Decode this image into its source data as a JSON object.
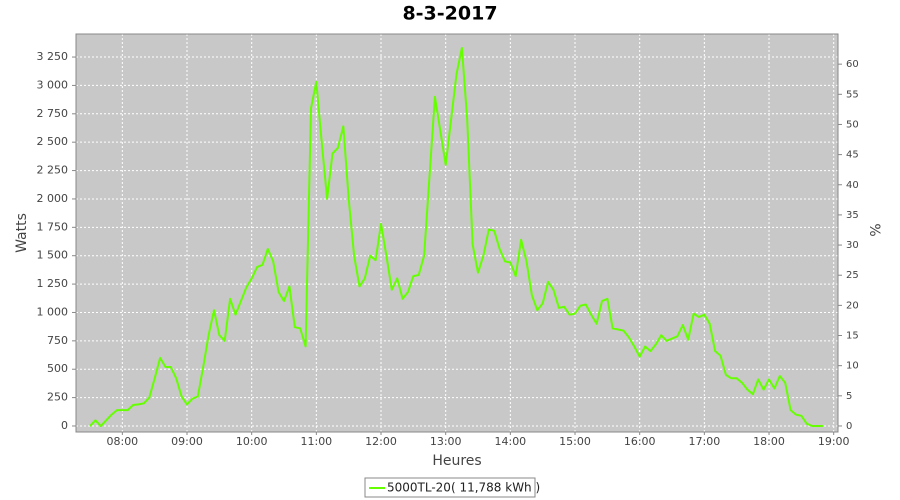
{
  "chart_data": {
    "type": "line",
    "title": "8-3-2017",
    "x_label": "Heures",
    "y_label": "Watts",
    "y2_label": "%",
    "x": [
      "07:30",
      "07:35",
      "07:40",
      "07:45",
      "07:50",
      "07:55",
      "08:00",
      "08:05",
      "08:10",
      "08:15",
      "08:20",
      "08:25",
      "08:30",
      "08:35",
      "08:40",
      "08:45",
      "08:50",
      "08:55",
      "09:00",
      "09:05",
      "09:10",
      "09:15",
      "09:20",
      "09:25",
      "09:30",
      "09:35",
      "09:40",
      "09:45",
      "09:50",
      "09:55",
      "10:00",
      "10:05",
      "10:10",
      "10:15",
      "10:20",
      "10:25",
      "10:30",
      "10:35",
      "10:40",
      "10:45",
      "10:50",
      "10:55",
      "11:00",
      "11:05",
      "11:10",
      "11:15",
      "11:20",
      "11:25",
      "11:30",
      "11:35",
      "11:40",
      "11:45",
      "11:50",
      "11:55",
      "12:00",
      "12:05",
      "12:10",
      "12:15",
      "12:20",
      "12:25",
      "12:30",
      "12:35",
      "12:40",
      "12:45",
      "12:50",
      "12:55",
      "13:00",
      "13:05",
      "13:10",
      "13:15",
      "13:20",
      "13:25",
      "13:30",
      "13:35",
      "13:40",
      "13:45",
      "13:50",
      "13:55",
      "14:00",
      "14:05",
      "14:10",
      "14:15",
      "14:20",
      "14:25",
      "14:30",
      "14:35",
      "14:40",
      "14:45",
      "14:50",
      "14:55",
      "15:00",
      "15:05",
      "15:10",
      "15:15",
      "15:20",
      "15:25",
      "15:30",
      "15:35",
      "15:40",
      "15:45",
      "15:50",
      "15:55",
      "16:00",
      "16:05",
      "16:10",
      "16:15",
      "16:20",
      "16:25",
      "16:30",
      "16:35",
      "16:40",
      "16:45",
      "16:50",
      "16:55",
      "17:00",
      "17:05",
      "17:10",
      "17:15",
      "17:20",
      "17:25",
      "17:30",
      "17:35",
      "17:40",
      "17:45",
      "17:50",
      "17:55",
      "18:00",
      "18:05",
      "18:10",
      "18:15",
      "18:20",
      "18:25",
      "18:30",
      "18:35",
      "18:40",
      "18:45",
      "18:50"
    ],
    "series": [
      {
        "name": "5000TL-20( 11,788 kWh )",
        "color": "#66ff00",
        "values": [
          0,
          50,
          0,
          50,
          100,
          140,
          140,
          140,
          185,
          190,
          200,
          250,
          420,
          600,
          520,
          520,
          420,
          260,
          190,
          240,
          260,
          520,
          800,
          1020,
          800,
          750,
          1120,
          980,
          1100,
          1220,
          1300,
          1400,
          1420,
          1560,
          1450,
          1180,
          1100,
          1230,
          870,
          860,
          700,
          2800,
          3030,
          2500,
          2000,
          2400,
          2450,
          2640,
          2000,
          1500,
          1230,
          1300,
          1500,
          1460,
          1780,
          1500,
          1200,
          1300,
          1120,
          1180,
          1320,
          1330,
          1500,
          2200,
          2900,
          2600,
          2300,
          2700,
          3100,
          3330,
          2700,
          1600,
          1350,
          1500,
          1730,
          1720,
          1560,
          1450,
          1440,
          1320,
          1640,
          1450,
          1150,
          1020,
          1080,
          1270,
          1200,
          1040,
          1050,
          980,
          990,
          1060,
          1070,
          980,
          900,
          1100,
          1120,
          860,
          850,
          840,
          780,
          700,
          610,
          700,
          660,
          720,
          800,
          750,
          770,
          790,
          890,
          760,
          990,
          960,
          980,
          900,
          660,
          620,
          450,
          420,
          420,
          380,
          320,
          280,
          410,
          320,
          410,
          330,
          440,
          380,
          140,
          100,
          90,
          20,
          0,
          0,
          0
        ]
      }
    ],
    "xlim": [
      "07:17",
      "19:04"
    ],
    "xticks": [
      "08:00",
      "09:00",
      "10:00",
      "11:00",
      "12:00",
      "13:00",
      "14:00",
      "15:00",
      "16:00",
      "17:00",
      "18:00",
      "19:00"
    ],
    "ylim": [
      -53,
      3453
    ],
    "yticks": [
      0,
      250,
      500,
      750,
      {
        "value": 1000,
        "label": "1 000"
      },
      {
        "value": 1250,
        "label": "1 250"
      },
      {
        "value": 1500,
        "label": "1 500"
      },
      {
        "value": 1750,
        "label": "1 750"
      },
      {
        "value": 2000,
        "label": "2 000"
      },
      {
        "value": 2250,
        "label": "2 250"
      },
      {
        "value": 2500,
        "label": "2 500"
      },
      {
        "value": 2750,
        "label": "2 750"
      },
      {
        "value": 3000,
        "label": "3 000"
      },
      {
        "value": 3250,
        "label": "3 250"
      }
    ],
    "y2lim": [
      -1,
      65
    ],
    "y2ticks": [
      0,
      5,
      10,
      15,
      20,
      25,
      30,
      35,
      40,
      45,
      50,
      55,
      60
    ],
    "grid": true
  }
}
